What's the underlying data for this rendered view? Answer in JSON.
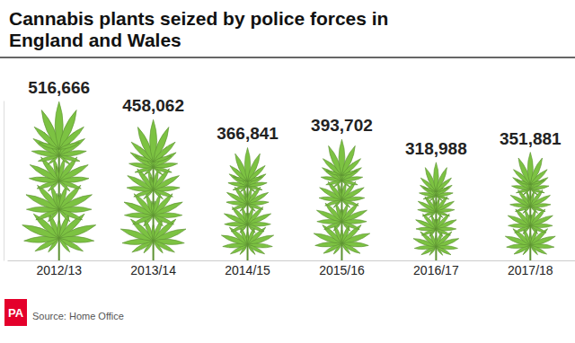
{
  "chart_data": {
    "type": "bar",
    "title": "Cannabis plants seized by police forces in England and Wales",
    "categories": [
      "2012/13",
      "2013/14",
      "2014/15",
      "2015/16",
      "2016/17",
      "2017/18"
    ],
    "values": [
      516666,
      458062,
      366841,
      393702,
      318988,
      351881
    ],
    "value_labels": [
      "516,666",
      "458,062",
      "366,841",
      "393,702",
      "318,988",
      "351,881"
    ],
    "data_labels": true,
    "color": "#7cc242",
    "ylim": [
      0,
      520000
    ],
    "grid": false,
    "tick_labels": "x",
    "credit": "PA",
    "source": "Source: Home Office"
  }
}
